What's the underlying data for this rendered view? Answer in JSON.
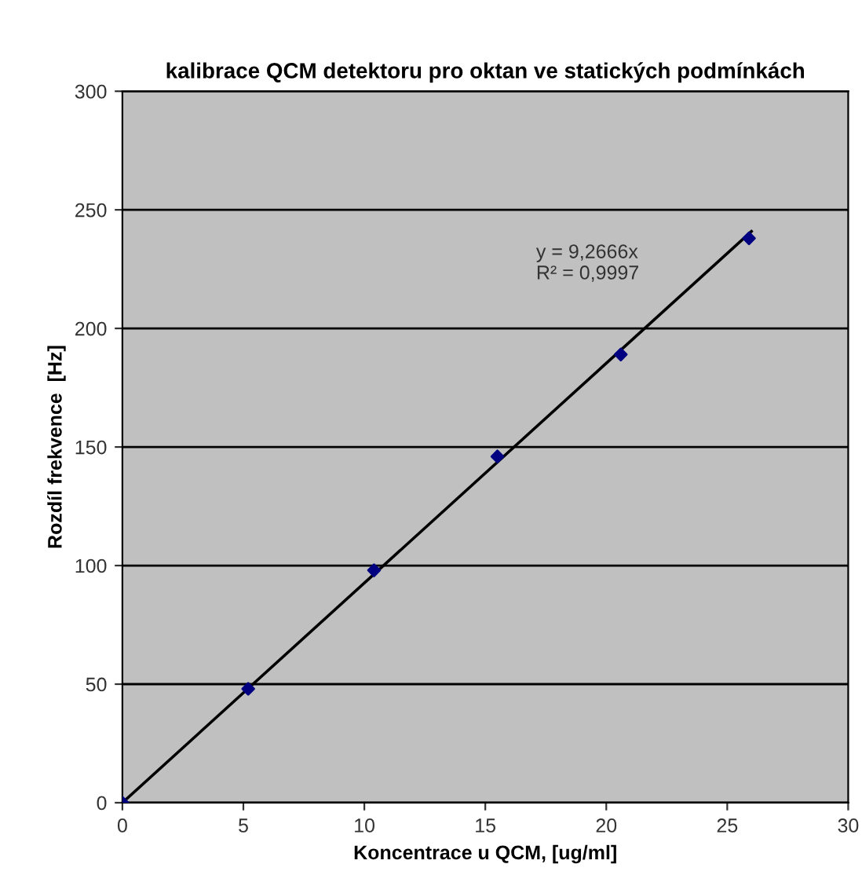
{
  "chart_data": {
    "type": "scatter",
    "title": "kalibrace QCM detektoru pro oktan ve statických podmínkách",
    "xlabel": "Koncentrace u QCM, [ug/ml]",
    "ylabel": "Rozdíl frekvence  [Hz]",
    "series": [
      {
        "color": "#000080",
        "x": [
          0,
          5.2,
          10.4,
          15.5,
          20.6,
          25.9
        ],
        "values": [
          0,
          48,
          98,
          146,
          189,
          238
        ],
        "marker": "diamond"
      },
      {
        "type": "line",
        "color": "#000000",
        "x": [
          0,
          26
        ],
        "values": [
          0,
          240.9
        ]
      }
    ],
    "annotations": [
      "y = 9,2666x\nR² = 0,9997"
    ],
    "xlim": [
      0,
      30
    ],
    "xticks": [
      0,
      5,
      10,
      15,
      20,
      25,
      30
    ],
    "ylim": [
      0,
      300
    ],
    "yticks": [
      0,
      50,
      100,
      150,
      200,
      250,
      300
    ],
    "grid": "y"
  }
}
